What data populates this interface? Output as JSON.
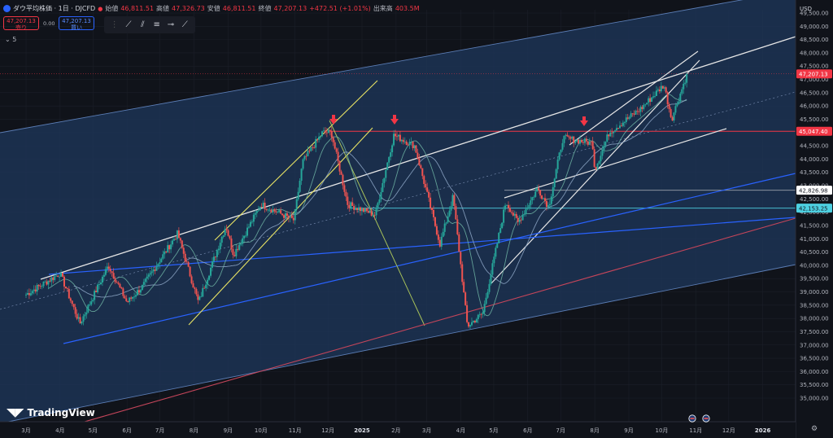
{
  "header": {
    "symbol_title": "ダウ平均株価 · 1日 · DJCFD",
    "open_label": "始値",
    "open": "46,811.51",
    "high_label": "高値",
    "high": "47,326.73",
    "low_label": "安値",
    "low": "46,811.51",
    "close_label": "終値",
    "close": "47,207.13",
    "change": "+472.51 (+1.01%)",
    "volume_label": "出来高",
    "volume": "403.5M"
  },
  "trade": {
    "sell_price": "47,207.13",
    "sell_label": "売り",
    "spread": "0.00",
    "buy_price": "47,207.13",
    "buy_label": "買い"
  },
  "indicators_count": "5",
  "brand": "TradingView",
  "currency": "USD",
  "colors": {
    "background": "#10131a",
    "channel_fill": "#1d3557",
    "up": "#26a69a",
    "down": "#ef5350",
    "price_label": "#f23645",
    "resistance": "#f23645",
    "support_cyan": "#4dd0e1",
    "trend_white": "#e6e6e6",
    "trend_blue": "#2962ff",
    "trend_yellow": "#e8e364",
    "channel_red": "#c4455a"
  },
  "chart_data": {
    "type": "candlestick",
    "y_axis": {
      "range": [
        35000,
        49500
      ],
      "step": 500,
      "side": "right",
      "unit": "USD"
    },
    "x_axis_labels": [
      "3月",
      "4月",
      "5月",
      "6月",
      "7月",
      "8月",
      "9月",
      "10月",
      "11月",
      "12月",
      "2025",
      "2月",
      "3月",
      "4月",
      "5月",
      "6月",
      "7月",
      "8月",
      "9月",
      "10月",
      "11月",
      "12月",
      "2026"
    ],
    "x_axis_bold": [
      "2025",
      "2026"
    ],
    "price_labels": [
      {
        "value": 47207.13,
        "text": "47,207.13",
        "style": "current"
      },
      {
        "value": 45047.4,
        "text": "45,047.40",
        "style": "resistance"
      },
      {
        "value": 42826.98,
        "text": "42,826.98",
        "style": "white"
      },
      {
        "value": 42153.25,
        "text": "42,153.25",
        "style": "cyan"
      }
    ],
    "key_points": [
      {
        "date": "2024-03-01",
        "close": 38900
      },
      {
        "date": "2024-04-01",
        "close": 39700
      },
      {
        "date": "2024-04-19",
        "close": 37800
      },
      {
        "date": "2024-05-15",
        "close": 40000
      },
      {
        "date": "2024-06-01",
        "close": 38600
      },
      {
        "date": "2024-06-15",
        "close": 39200
      },
      {
        "date": "2024-07-17",
        "close": 41200
      },
      {
        "date": "2024-08-05",
        "close": 38600
      },
      {
        "date": "2024-08-30",
        "close": 41500
      },
      {
        "date": "2024-09-06",
        "close": 40400
      },
      {
        "date": "2024-10-01",
        "close": 42300
      },
      {
        "date": "2024-10-31",
        "close": 41700
      },
      {
        "date": "2024-11-08",
        "close": 43900
      },
      {
        "date": "2024-11-26",
        "close": 45000
      },
      {
        "date": "2024-12-04",
        "close": 45000
      },
      {
        "date": "2024-12-19",
        "close": 42300
      },
      {
        "date": "2025-01-13",
        "close": 41900
      },
      {
        "date": "2025-01-30",
        "close": 44900
      },
      {
        "date": "2025-02-18",
        "close": 44500
      },
      {
        "date": "2025-03-13",
        "close": 40800
      },
      {
        "date": "2025-03-25",
        "close": 42600
      },
      {
        "date": "2025-04-07",
        "close": 37700
      },
      {
        "date": "2025-04-21",
        "close": 38200
      },
      {
        "date": "2025-05-12",
        "close": 42400
      },
      {
        "date": "2025-05-23",
        "close": 41600
      },
      {
        "date": "2025-06-10",
        "close": 42900
      },
      {
        "date": "2025-06-20",
        "close": 42200
      },
      {
        "date": "2025-07-03",
        "close": 44800
      },
      {
        "date": "2025-07-30",
        "close": 44600
      },
      {
        "date": "2025-08-01",
        "close": 43600
      },
      {
        "date": "2025-08-14",
        "close": 45000
      },
      {
        "date": "2025-09-12",
        "close": 45900
      },
      {
        "date": "2025-10-03",
        "close": 46800
      },
      {
        "date": "2025-10-10",
        "close": 45500
      },
      {
        "date": "2025-10-24",
        "close": 47207
      }
    ]
  }
}
